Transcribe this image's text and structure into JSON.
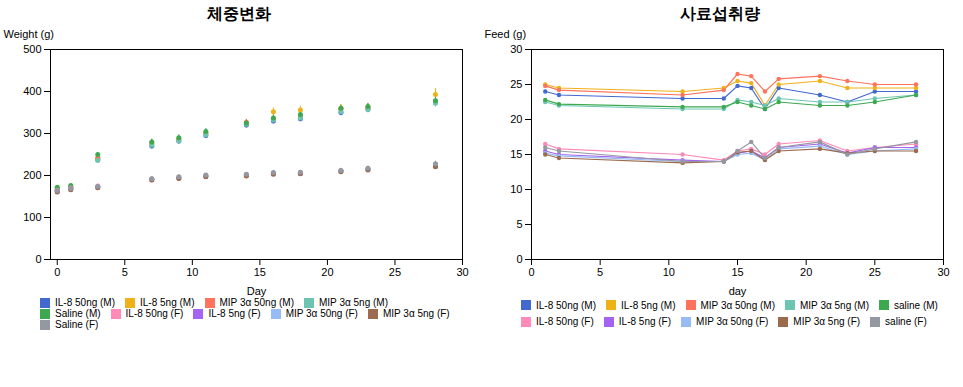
{
  "chart_data": [
    {
      "type": "scatter",
      "title": "체중변화",
      "xlabel": "Day",
      "ylabel": "Weight (g)",
      "x": [
        0,
        1,
        3,
        7,
        9,
        11,
        14,
        16,
        18,
        21,
        23,
        28
      ],
      "series": [
        {
          "name": "IL-8 50ng (M)",
          "values": [
            165,
            170,
            238,
            270,
            282,
            295,
            320,
            330,
            335,
            350,
            358,
            376
          ],
          "errors": [
            4,
            4,
            5,
            7,
            7,
            7,
            7,
            7,
            7,
            8,
            8,
            9
          ]
        },
        {
          "name": "IL-8 5ng (M)",
          "values": [
            168,
            172,
            240,
            275,
            285,
            300,
            325,
            352,
            356,
            360,
            362,
            393
          ],
          "errors": [
            4,
            4,
            5,
            7,
            7,
            7,
            7,
            9,
            9,
            9,
            9,
            14
          ]
        },
        {
          "name": "MIP 3α 50ng (M)",
          "values": [
            170,
            174,
            242,
            278,
            287,
            302,
            327,
            335,
            342,
            358,
            362,
            375
          ],
          "errors": [
            4,
            4,
            5,
            7,
            7,
            7,
            7,
            7,
            7,
            8,
            8,
            9
          ]
        },
        {
          "name": "MIP 3α 5ng (M)",
          "values": [
            166,
            170,
            236,
            272,
            282,
            297,
            322,
            332,
            337,
            352,
            357,
            372
          ],
          "errors": [
            4,
            4,
            5,
            7,
            7,
            7,
            7,
            7,
            7,
            8,
            8,
            9
          ]
        },
        {
          "name": "Saline (M)",
          "values": [
            172,
            176,
            250,
            280,
            290,
            305,
            325,
            337,
            345,
            360,
            364,
            378
          ],
          "errors": [
            4,
            4,
            5,
            7,
            7,
            7,
            7,
            7,
            7,
            8,
            8,
            9
          ]
        },
        {
          "name": "IL-8 50ng (F)",
          "values": [
            165,
            170,
            175,
            192,
            196,
            200,
            202,
            206,
            207,
            212,
            216,
            225
          ],
          "errors": [
            3,
            3,
            4,
            4,
            4,
            4,
            4,
            4,
            4,
            5,
            5,
            6
          ]
        },
        {
          "name": "IL-8 5ng (F)",
          "values": [
            162,
            167,
            172,
            190,
            194,
            198,
            200,
            204,
            205,
            210,
            214,
            222
          ],
          "errors": [
            3,
            3,
            4,
            4,
            4,
            4,
            4,
            4,
            4,
            5,
            5,
            6
          ]
        },
        {
          "name": "MIP 3α 50ng (F)",
          "values": [
            163,
            168,
            173,
            191,
            195,
            199,
            201,
            205,
            206,
            211,
            215,
            223
          ],
          "errors": [
            3,
            3,
            4,
            4,
            4,
            4,
            4,
            4,
            4,
            5,
            5,
            6
          ]
        },
        {
          "name": "MIP 3α 5ng (F)",
          "values": [
            161,
            166,
            171,
            189,
            193,
            197,
            199,
            203,
            204,
            209,
            213,
            221
          ],
          "errors": [
            3,
            3,
            4,
            4,
            4,
            4,
            4,
            4,
            4,
            5,
            5,
            6
          ]
        },
        {
          "name": "Saline (F)",
          "values": [
            164,
            169,
            174,
            192,
            197,
            201,
            203,
            207,
            208,
            212,
            217,
            228
          ],
          "errors": [
            3,
            3,
            4,
            4,
            4,
            4,
            4,
            4,
            4,
            5,
            5,
            6
          ]
        }
      ],
      "xlim": [
        -0.5,
        30
      ],
      "xticks": [
        0,
        5,
        10,
        15,
        20,
        25,
        30
      ],
      "ylim": [
        0,
        500
      ],
      "yticks": [
        0,
        100,
        200,
        300,
        400,
        500
      ],
      "grid": false,
      "legend": "bottom"
    },
    {
      "type": "line",
      "title": "사료섭취량",
      "xlabel": "day",
      "ylabel": "Feed (g)",
      "x": [
        1,
        2,
        11,
        14,
        15,
        16,
        17,
        18,
        21,
        23,
        25,
        28
      ],
      "series": [
        {
          "name": "IL-8 50ng (M)",
          "values": [
            24.0,
            23.5,
            23.0,
            23.0,
            24.8,
            24.5,
            21.5,
            24.5,
            23.5,
            22.5,
            24.0,
            24.0
          ]
        },
        {
          "name": "IL-8 5ng (M)",
          "values": [
            25.0,
            24.5,
            24.0,
            24.5,
            25.5,
            25.2,
            22.0,
            25.0,
            25.5,
            24.5,
            24.5,
            24.5
          ]
        },
        {
          "name": "MIP 3α 50ng (M)",
          "values": [
            24.8,
            24.2,
            23.5,
            24.2,
            26.5,
            26.2,
            24.0,
            25.8,
            26.2,
            25.5,
            25.0,
            25.0
          ]
        },
        {
          "name": "MIP 3α 5ng (M)",
          "values": [
            22.5,
            22.0,
            21.5,
            21.5,
            22.8,
            22.5,
            22.0,
            23.0,
            22.5,
            22.5,
            23.0,
            23.5
          ]
        },
        {
          "name": "saline (M)",
          "values": [
            22.8,
            22.2,
            21.8,
            21.8,
            22.5,
            22.0,
            21.5,
            22.5,
            22.0,
            22.0,
            22.5,
            23.5
          ]
        },
        {
          "name": "IL-8 50ng (F)",
          "values": [
            16.5,
            15.8,
            15.0,
            14.2,
            15.5,
            15.8,
            15.0,
            16.5,
            17.0,
            15.5,
            16.0,
            16.5
          ]
        },
        {
          "name": "IL-8 5ng (F)",
          "values": [
            15.5,
            15.0,
            14.2,
            14.0,
            15.2,
            15.5,
            14.5,
            16.0,
            16.5,
            15.2,
            16.0,
            16.0
          ]
        },
        {
          "name": "MIP 3α 50ng (F)",
          "values": [
            15.2,
            14.8,
            14.0,
            14.0,
            15.0,
            15.2,
            14.2,
            15.8,
            16.2,
            15.0,
            15.5,
            15.8
          ]
        },
        {
          "name": "MIP 3α 5ng (F)",
          "values": [
            15.0,
            14.5,
            13.8,
            14.0,
            15.3,
            15.5,
            14.2,
            15.5,
            15.8,
            15.2,
            15.5,
            15.5
          ]
        },
        {
          "name": "saline (F)",
          "values": [
            16.0,
            15.5,
            14.0,
            14.0,
            15.5,
            16.8,
            14.5,
            16.0,
            16.8,
            15.0,
            15.8,
            16.8
          ]
        }
      ],
      "xlim": [
        0,
        30
      ],
      "xticks": [
        0,
        5,
        10,
        15,
        20,
        25,
        30
      ],
      "ylim": [
        0,
        30
      ],
      "yticks": [
        0,
        5,
        10,
        15,
        20,
        25,
        30
      ],
      "grid": false,
      "legend": "bottom"
    }
  ]
}
